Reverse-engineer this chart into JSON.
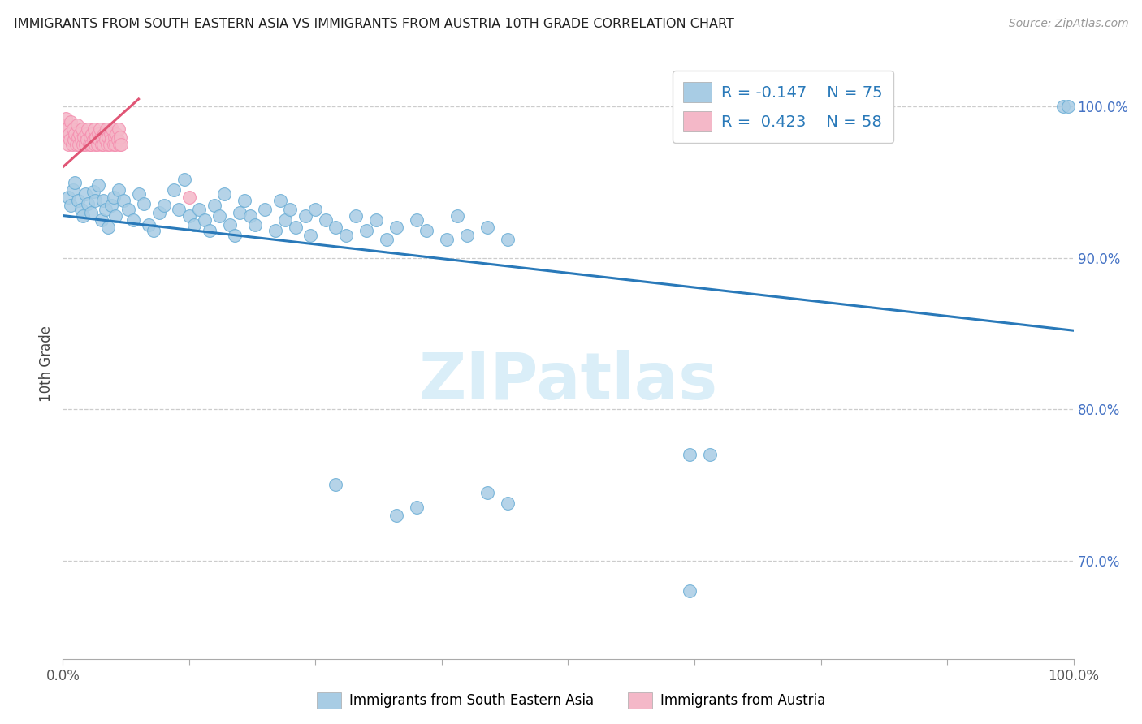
{
  "title": "IMMIGRANTS FROM SOUTH EASTERN ASIA VS IMMIGRANTS FROM AUSTRIA 10TH GRADE CORRELATION CHART",
  "source": "Source: ZipAtlas.com",
  "ylabel": "10th Grade",
  "right_ytick_labels": [
    "100.0%",
    "90.0%",
    "80.0%",
    "70.0%"
  ],
  "right_ytick_positions": [
    1.0,
    0.9,
    0.8,
    0.7
  ],
  "ylim_min": 0.635,
  "ylim_max": 1.025,
  "xlim_min": 0.0,
  "xlim_max": 1.0,
  "legend_r1": "R = -0.147",
  "legend_n1": "N = 75",
  "legend_r2": "R =  0.423",
  "legend_n2": "N = 58",
  "blue_color": "#a8cce4",
  "blue_edge_color": "#6aaed6",
  "pink_color": "#f4b8c8",
  "pink_edge_color": "#f48fb0",
  "blue_line_color": "#2979b9",
  "pink_line_color": "#e05575",
  "watermark": "ZIPatlas",
  "watermark_color": "#daeef8",
  "blue_line_x": [
    0.0,
    1.0
  ],
  "blue_line_y": [
    0.928,
    0.852
  ],
  "pink_line_x": [
    0.0,
    0.075
  ],
  "pink_line_y": [
    0.96,
    1.005
  ],
  "blue_scatter_x": [
    0.005,
    0.008,
    0.01,
    0.012,
    0.015,
    0.018,
    0.02,
    0.022,
    0.025,
    0.028,
    0.03,
    0.032,
    0.035,
    0.038,
    0.04,
    0.042,
    0.045,
    0.048,
    0.05,
    0.052,
    0.055,
    0.06,
    0.065,
    0.07,
    0.075,
    0.08,
    0.085,
    0.09,
    0.095,
    0.1,
    0.11,
    0.115,
    0.12,
    0.125,
    0.13,
    0.135,
    0.14,
    0.145,
    0.15,
    0.155,
    0.16,
    0.165,
    0.17,
    0.175,
    0.18,
    0.185,
    0.19,
    0.2,
    0.21,
    0.215,
    0.22,
    0.225,
    0.23,
    0.24,
    0.245,
    0.25,
    0.26,
    0.27,
    0.28,
    0.29,
    0.3,
    0.31,
    0.32,
    0.33,
    0.35,
    0.36,
    0.38,
    0.39,
    0.4,
    0.42,
    0.44,
    0.62,
    0.64,
    0.99,
    0.995
  ],
  "blue_scatter_y": [
    0.94,
    0.935,
    0.945,
    0.95,
    0.938,
    0.932,
    0.928,
    0.942,
    0.936,
    0.93,
    0.944,
    0.938,
    0.948,
    0.925,
    0.938,
    0.932,
    0.92,
    0.935,
    0.94,
    0.928,
    0.945,
    0.938,
    0.932,
    0.925,
    0.942,
    0.936,
    0.922,
    0.918,
    0.93,
    0.935,
    0.945,
    0.932,
    0.952,
    0.928,
    0.922,
    0.932,
    0.925,
    0.918,
    0.935,
    0.928,
    0.942,
    0.922,
    0.915,
    0.93,
    0.938,
    0.928,
    0.922,
    0.932,
    0.918,
    0.938,
    0.925,
    0.932,
    0.92,
    0.928,
    0.915,
    0.932,
    0.925,
    0.92,
    0.915,
    0.928,
    0.918,
    0.925,
    0.912,
    0.92,
    0.925,
    0.918,
    0.912,
    0.928,
    0.915,
    0.92,
    0.912,
    0.77,
    0.77,
    1.0,
    1.0
  ],
  "blue_scatter_outlier_x": [
    0.27,
    0.33,
    0.35,
    0.42,
    0.44,
    0.62
  ],
  "blue_scatter_outlier_y": [
    0.75,
    0.73,
    0.735,
    0.745,
    0.738,
    0.68
  ],
  "pink_scatter_x": [
    0.002,
    0.003,
    0.004,
    0.005,
    0.006,
    0.007,
    0.008,
    0.009,
    0.01,
    0.011,
    0.012,
    0.013,
    0.014,
    0.015,
    0.016,
    0.017,
    0.018,
    0.019,
    0.02,
    0.021,
    0.022,
    0.023,
    0.024,
    0.025,
    0.026,
    0.027,
    0.028,
    0.029,
    0.03,
    0.031,
    0.032,
    0.033,
    0.034,
    0.035,
    0.036,
    0.037,
    0.038,
    0.039,
    0.04,
    0.041,
    0.042,
    0.043,
    0.044,
    0.045,
    0.046,
    0.047,
    0.048,
    0.049,
    0.05,
    0.051,
    0.052,
    0.053,
    0.054,
    0.055,
    0.056,
    0.057,
    0.058,
    0.125
  ],
  "pink_scatter_y": [
    0.988,
    0.992,
    0.985,
    0.975,
    0.982,
    0.978,
    0.99,
    0.975,
    0.985,
    0.978,
    0.982,
    0.975,
    0.988,
    0.98,
    0.975,
    0.982,
    0.978,
    0.985,
    0.975,
    0.98,
    0.975,
    0.982,
    0.978,
    0.985,
    0.975,
    0.98,
    0.975,
    0.982,
    0.978,
    0.985,
    0.975,
    0.98,
    0.975,
    0.982,
    0.978,
    0.985,
    0.975,
    0.98,
    0.975,
    0.982,
    0.978,
    0.985,
    0.975,
    0.98,
    0.975,
    0.982,
    0.978,
    0.985,
    0.975,
    0.98,
    0.975,
    0.982,
    0.978,
    0.985,
    0.975,
    0.98,
    0.975,
    0.94
  ]
}
